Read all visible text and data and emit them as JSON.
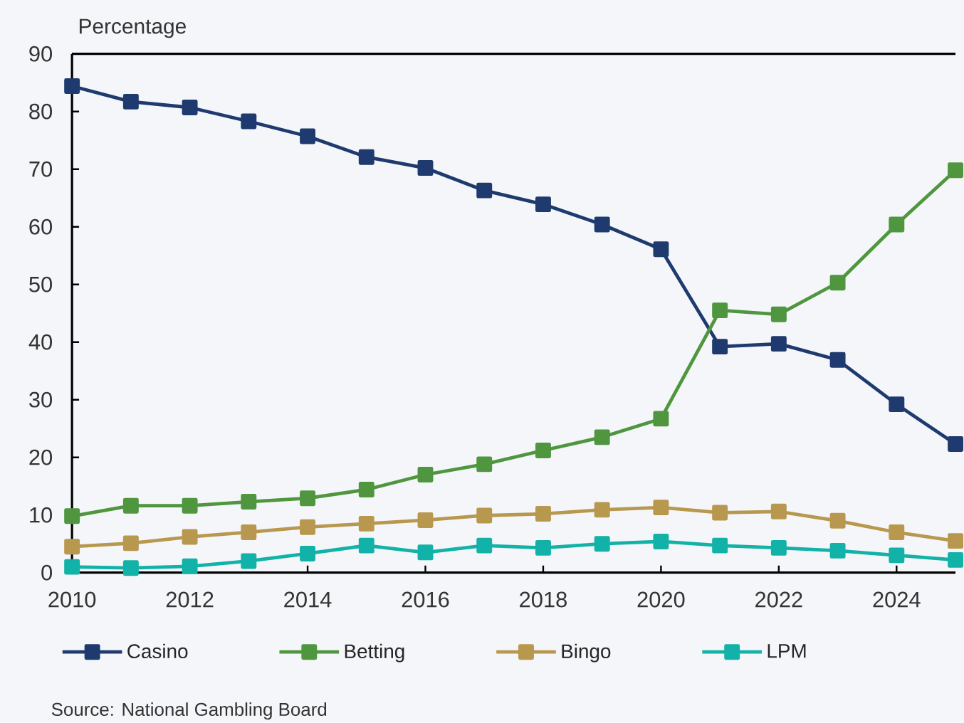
{
  "chart_data": {
    "type": "line",
    "ylabel": "Percentage",
    "x": [
      2010,
      2011,
      2012,
      2013,
      2014,
      2015,
      2016,
      2017,
      2018,
      2019,
      2020,
      2021,
      2022,
      2023,
      2024,
      2025
    ],
    "xlim": [
      2010,
      2025
    ],
    "xticks": [
      2010,
      2012,
      2014,
      2016,
      2018,
      2020,
      2022,
      2024
    ],
    "ylim": [
      0,
      90
    ],
    "yticks": [
      0,
      10,
      20,
      30,
      40,
      50,
      60,
      70,
      80,
      90
    ],
    "series": [
      {
        "name": "Casino",
        "color": "#1f3a6e",
        "values": [
          84.4,
          81.7,
          80.7,
          78.3,
          75.7,
          72.1,
          70.2,
          66.3,
          63.9,
          60.4,
          56.1,
          39.2,
          39.7,
          36.9,
          29.2,
          22.3
        ]
      },
      {
        "name": "Betting",
        "color": "#4f963f",
        "values": [
          9.8,
          11.6,
          11.6,
          12.3,
          12.9,
          14.4,
          17.0,
          18.8,
          21.2,
          23.5,
          26.7,
          45.5,
          44.8,
          50.3,
          60.4,
          69.8
        ]
      },
      {
        "name": "Bingo",
        "color": "#b8984f",
        "values": [
          4.5,
          5.1,
          6.2,
          7.0,
          7.9,
          8.5,
          9.1,
          9.9,
          10.2,
          10.9,
          11.3,
          10.4,
          10.6,
          9.0,
          7.0,
          5.5
        ]
      },
      {
        "name": "LPM",
        "color": "#12b2a8",
        "values": [
          1.0,
          0.8,
          1.1,
          2.0,
          3.3,
          4.7,
          3.5,
          4.7,
          4.3,
          5.0,
          5.4,
          4.7,
          4.3,
          3.8,
          3.0,
          2.2
        ]
      }
    ],
    "marker": "square",
    "line_style": "solid",
    "legend": "bottom",
    "annotations": [
      "Source: National Gambling Board"
    ]
  }
}
